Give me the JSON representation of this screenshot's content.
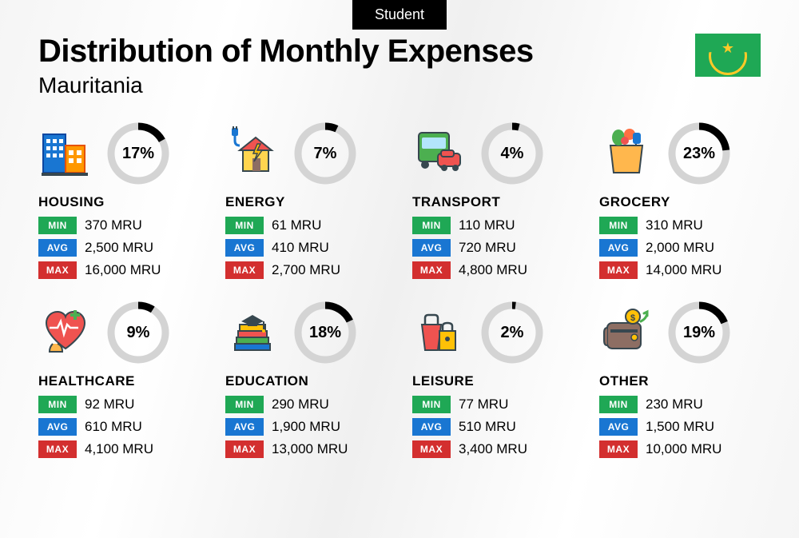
{
  "tag": "Student",
  "title": "Distribution of Monthly Expenses",
  "country": "Mauritania",
  "currency": "MRU",
  "labels": {
    "min": "MIN",
    "avg": "AVG",
    "max": "MAX"
  },
  "badge_colors": {
    "min": "#1fa855",
    "avg": "#1976d2",
    "max": "#d32f2f"
  },
  "flag_bg": "#1fa855",
  "flag_accent": "#ffc928",
  "donut_bg": "#d4d4d4",
  "donut_fg": "#000000",
  "donut_stroke": 9,
  "categories": [
    {
      "key": "housing",
      "name": "HOUSING",
      "percent": 17,
      "min": "370",
      "avg": "2,500",
      "max": "16,000",
      "icon": "housing"
    },
    {
      "key": "energy",
      "name": "ENERGY",
      "percent": 7,
      "min": "61",
      "avg": "410",
      "max": "2,700",
      "icon": "energy"
    },
    {
      "key": "transport",
      "name": "TRANSPORT",
      "percent": 4,
      "min": "110",
      "avg": "720",
      "max": "4,800",
      "icon": "transport"
    },
    {
      "key": "grocery",
      "name": "GROCERY",
      "percent": 23,
      "min": "310",
      "avg": "2,000",
      "max": "14,000",
      "icon": "grocery"
    },
    {
      "key": "healthcare",
      "name": "HEALTHCARE",
      "percent": 9,
      "min": "92",
      "avg": "610",
      "max": "4,100",
      "icon": "healthcare"
    },
    {
      "key": "education",
      "name": "EDUCATION",
      "percent": 18,
      "min": "290",
      "avg": "1,900",
      "max": "13,000",
      "icon": "education"
    },
    {
      "key": "leisure",
      "name": "LEISURE",
      "percent": 2,
      "min": "77",
      "avg": "510",
      "max": "3,400",
      "icon": "leisure"
    },
    {
      "key": "other",
      "name": "OTHER",
      "percent": 19,
      "min": "230",
      "avg": "1,500",
      "max": "10,000",
      "icon": "other"
    }
  ]
}
